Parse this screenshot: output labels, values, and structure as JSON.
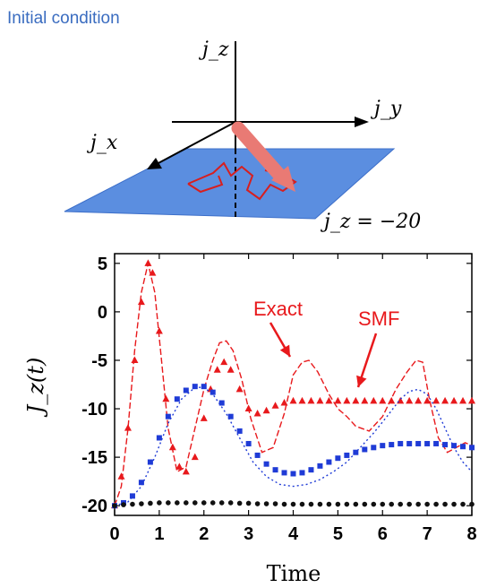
{
  "diagram": {
    "title": "Initial condition",
    "axis_labels": {
      "z": "j_z",
      "y": "j_y",
      "x": "j_x"
    },
    "plane_label": "j_z = −20",
    "title_color": "#3a6cc0",
    "plane_color": "#5b8ee0",
    "arrow_color": "#e97a74",
    "path_color": "#d81e1e"
  },
  "chart_data": {
    "type": "line",
    "xlabel": "Time",
    "ylabel": "J_z(t)",
    "xlim": [
      0,
      8
    ],
    "ylim": [
      -21,
      6
    ],
    "xticks": [
      0,
      1,
      2,
      3,
      4,
      5,
      6,
      7,
      8
    ],
    "yticks": [
      5,
      0,
      -5,
      -10,
      -15,
      -20
    ],
    "annotations": [
      {
        "text": "Exact",
        "color": "#e8191c",
        "target": [
          4.05,
          -5.6
        ]
      },
      {
        "text": "SMF",
        "color": "#e8191c",
        "target": [
          5.45,
          -9.3
        ]
      }
    ],
    "series": [
      {
        "name": "Exact",
        "color": "#e8191c",
        "style": "dashed",
        "x": [
          0,
          0.15,
          0.3,
          0.45,
          0.6,
          0.75,
          0.9,
          1.05,
          1.2,
          1.4,
          1.6,
          1.8,
          2.0,
          2.2,
          2.35,
          2.5,
          2.65,
          2.85,
          3.05,
          3.3,
          3.55,
          3.8,
          4.0,
          4.2,
          4.35,
          4.55,
          4.8,
          5.0,
          5.2,
          5.4,
          5.7,
          6.0,
          6.3,
          6.55,
          6.75,
          6.9,
          7.05,
          7.25,
          7.45,
          7.65,
          7.85,
          8.0
        ],
        "y": [
          -20,
          -18,
          -12,
          -4,
          2,
          5,
          2,
          -5,
          -12,
          -16.5,
          -16,
          -12,
          -8,
          -5,
          -3.2,
          -3,
          -4,
          -7,
          -11,
          -14.5,
          -14,
          -10.5,
          -6.5,
          -5.2,
          -5,
          -6.2,
          -8.5,
          -10,
          -10.8,
          -11.8,
          -12.3,
          -10.8,
          -8,
          -6.2,
          -5,
          -5.2,
          -9,
          -13,
          -14.5,
          -14,
          -13.5,
          -13.8
        ]
      },
      {
        "name": "SMF",
        "color": "#e8191c",
        "marker": "triangle",
        "x": [
          0,
          0.15,
          0.3,
          0.45,
          0.6,
          0.75,
          0.85,
          1.0,
          1.15,
          1.3,
          1.45,
          1.6,
          1.8,
          2.0,
          2.15,
          2.3,
          2.45,
          2.6,
          2.8,
          3.0,
          3.2,
          3.4,
          3.6,
          3.8,
          4.0,
          4.2,
          4.4,
          4.6,
          4.8,
          5.0,
          5.2,
          5.4,
          5.6,
          5.8,
          6.0,
          6.2,
          6.4,
          6.6,
          6.8,
          7.0,
          7.2,
          7.4,
          7.6,
          7.8,
          8.0
        ],
        "y": [
          -20,
          -17,
          -12,
          -5,
          1,
          5,
          4,
          -2,
          -9,
          -14,
          -16,
          -16.5,
          -15,
          -11,
          -8,
          -6,
          -5.2,
          -6,
          -8,
          -10,
          -10.5,
          -10.2,
          -9.7,
          -9.4,
          -9.2,
          -9.2,
          -9.2,
          -9.2,
          -9.2,
          -9.2,
          -9.2,
          -9.2,
          -9.2,
          -9.2,
          -9.2,
          -9.2,
          -9.2,
          -9.2,
          -9.2,
          -9.2,
          -9.2,
          -9.2,
          -9.2,
          -9.2,
          -9.2
        ]
      },
      {
        "name": "exact-dotted",
        "color": "#1f3bd6",
        "style": "dotted",
        "x": [
          0,
          0.3,
          0.6,
          0.9,
          1.2,
          1.5,
          1.8,
          2.0,
          2.2,
          2.5,
          2.8,
          3.1,
          3.4,
          3.7,
          4.0,
          4.3,
          4.6,
          4.9,
          5.2,
          5.5,
          5.8,
          6.1,
          6.4,
          6.6,
          6.8,
          7.0,
          7.2,
          7.4,
          7.6,
          7.8,
          8.0
        ],
        "y": [
          -20,
          -19.6,
          -18,
          -15,
          -11.5,
          -9,
          -7.8,
          -7.8,
          -8.5,
          -10.5,
          -13,
          -15.5,
          -17,
          -17.8,
          -18,
          -17.8,
          -17.3,
          -16.5,
          -15.5,
          -14,
          -12.5,
          -10.8,
          -9,
          -8.2,
          -8,
          -8.5,
          -10,
          -12,
          -14,
          -15.5,
          -16.5
        ]
      },
      {
        "name": "squares",
        "color": "#1f3bd6",
        "marker": "square",
        "x": [
          0,
          0.2,
          0.4,
          0.6,
          0.8,
          1.0,
          1.2,
          1.4,
          1.6,
          1.8,
          2.0,
          2.2,
          2.4,
          2.6,
          2.8,
          3.0,
          3.2,
          3.4,
          3.6,
          3.8,
          4.0,
          4.2,
          4.4,
          4.6,
          4.8,
          5.0,
          5.2,
          5.4,
          5.6,
          5.8,
          6.0,
          6.2,
          6.4,
          6.6,
          6.8,
          7.0,
          7.2,
          7.4,
          7.6,
          7.8,
          8.0
        ],
        "y": [
          -20,
          -19.7,
          -19,
          -17.6,
          -15.5,
          -13,
          -10.8,
          -9,
          -8.1,
          -7.7,
          -7.7,
          -8.3,
          -9.4,
          -10.8,
          -12.3,
          -13.6,
          -14.8,
          -15.7,
          -16.3,
          -16.6,
          -16.7,
          -16.6,
          -16.3,
          -15.9,
          -15.5,
          -15.1,
          -14.8,
          -14.5,
          -14.2,
          -14.0,
          -13.8,
          -13.7,
          -13.6,
          -13.6,
          -13.6,
          -13.6,
          -13.6,
          -13.7,
          -13.8,
          -13.9,
          -14.0
        ]
      },
      {
        "name": "circles",
        "color": "#111111",
        "marker": "circle",
        "x": [
          0,
          0.2,
          0.4,
          0.6,
          0.8,
          1.0,
          1.2,
          1.4,
          1.6,
          1.8,
          2.0,
          2.2,
          2.4,
          2.6,
          2.8,
          3.0,
          3.2,
          3.4,
          3.6,
          3.8,
          4.0,
          4.2,
          4.4,
          4.6,
          4.8,
          5.0,
          5.2,
          5.4,
          5.6,
          5.8,
          6.0,
          6.2,
          6.4,
          6.6,
          6.8,
          7.0,
          7.2,
          7.4,
          7.6,
          7.8,
          8.0
        ],
        "y": [
          -20,
          -19.9,
          -19.85,
          -19.8,
          -19.75,
          -19.7,
          -19.7,
          -19.7,
          -19.7,
          -19.7,
          -19.7,
          -19.7,
          -19.7,
          -19.7,
          -19.75,
          -19.75,
          -19.8,
          -19.8,
          -19.8,
          -19.85,
          -19.85,
          -19.85,
          -19.85,
          -19.85,
          -19.85,
          -19.85,
          -19.85,
          -19.85,
          -19.85,
          -19.85,
          -19.85,
          -19.85,
          -19.85,
          -19.85,
          -19.85,
          -19.85,
          -19.85,
          -19.85,
          -19.85,
          -19.85,
          -19.85
        ]
      }
    ]
  }
}
